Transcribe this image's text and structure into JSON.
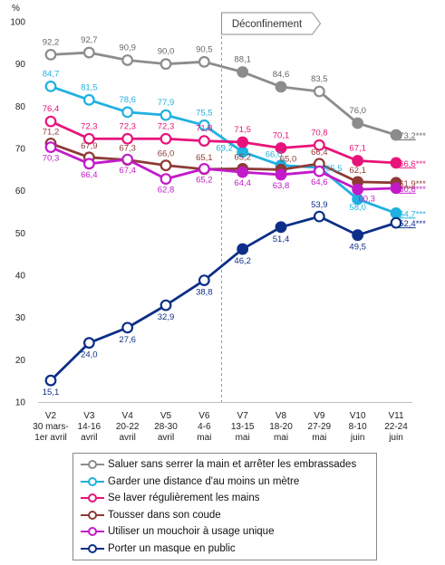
{
  "chart_data": {
    "type": "line",
    "ylabel": "%",
    "ylim": [
      10,
      100
    ],
    "yticks": [
      10,
      20,
      30,
      40,
      50,
      60,
      70,
      80,
      90,
      100
    ],
    "grid": false,
    "annotation": "Déconfinement",
    "x": [
      {
        "wave": "V2",
        "dates": "30 mars-",
        "month": "1er avril"
      },
      {
        "wave": "V3",
        "dates": "14-16",
        "month": "avril"
      },
      {
        "wave": "V4",
        "dates": "20-22",
        "month": "avril"
      },
      {
        "wave": "V5",
        "dates": "28-30",
        "month": "avril"
      },
      {
        "wave": "V6",
        "dates": "4-6",
        "month": "mai"
      },
      {
        "wave": "V7",
        "dates": "13-15",
        "month": "mai"
      },
      {
        "wave": "V8",
        "dates": "18-20",
        "month": "mai"
      },
      {
        "wave": "V9",
        "dates": "27-29",
        "month": "mai"
      },
      {
        "wave": "V10",
        "dates": "8-10",
        "month": "juin"
      },
      {
        "wave": "V11",
        "dates": "22-24",
        "month": "juin"
      }
    ],
    "series": [
      {
        "name": "Saluer sans serrer la main et arrêter les embrassades",
        "color": "#8c8c8c",
        "values": [
          92.2,
          92.7,
          90.9,
          90.0,
          90.5,
          88.1,
          84.6,
          83.5,
          76.0,
          73.2
        ],
        "labels": [
          "92,2",
          "92,7",
          "90,9",
          "90,0",
          "90,5",
          "88,1",
          "84,6",
          "83,5",
          "76,0",
          "73,2***"
        ]
      },
      {
        "name": "Garder une distance d'au moins un mètre",
        "color": "#1fb1e0",
        "values": [
          84.7,
          81.5,
          78.6,
          77.9,
          75.5,
          69.2,
          66.0,
          65.5,
          58.0,
          54.7
        ],
        "labels": [
          "84,7",
          "81,5",
          "78,6",
          "77,9",
          "75,5",
          "69,2",
          "66,0",
          "65,5",
          "58,0",
          "54,7***"
        ]
      },
      {
        "name": "Se laver régulièrement les mains",
        "color": "#e8137a",
        "values": [
          76.4,
          72.3,
          72.3,
          72.3,
          71.8,
          71.5,
          70.1,
          70.8,
          67.1,
          66.6
        ],
        "labels": [
          "76,4",
          "72,3",
          "72,3",
          "72,3",
          "71,8",
          "71,5",
          "70,1",
          "70,8",
          "67,1",
          "66,6***"
        ]
      },
      {
        "name": "Tousser dans son coude",
        "color": "#8e3a35",
        "values": [
          71.2,
          67.9,
          67.3,
          66.0,
          65.1,
          65.2,
          65.0,
          66.4,
          62.1,
          61.9
        ],
        "labels": [
          "71,2",
          "67,9",
          "67,3",
          "66,0",
          "65,1",
          "65,2",
          "65,0",
          "66,4",
          "62,1",
          "61,9***"
        ]
      },
      {
        "name": "Utiliser un mouchoir à usage unique",
        "color": "#c21ac9",
        "values": [
          70.3,
          66.4,
          67.4,
          62.8,
          65.2,
          64.4,
          63.8,
          64.6,
          60.3,
          60.6
        ],
        "labels": [
          "70,3",
          "66,4",
          "67,4",
          "62,8",
          "65,2",
          "64,4",
          "63,8",
          "64,6",
          "60,3",
          "60,6***"
        ]
      },
      {
        "name": "Porter un masque en public",
        "color": "#0d2f87",
        "values": [
          15.1,
          24.0,
          27.6,
          32.9,
          38.8,
          46.2,
          51.4,
          53.9,
          49.5,
          52.4
        ],
        "labels": [
          "15,1",
          "24,0",
          "27,6",
          "32,9",
          "38,8",
          "46,2",
          "51,4",
          "53,9",
          "49,5",
          "52,4***"
        ]
      }
    ]
  }
}
